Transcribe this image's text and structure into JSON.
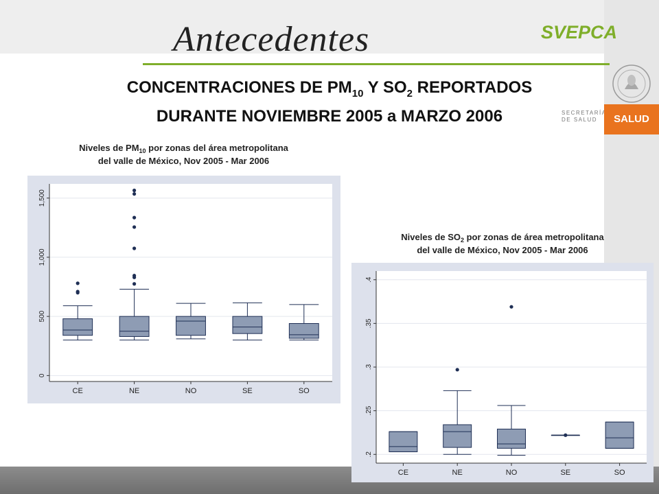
{
  "slide": {
    "title": "Antecedentes",
    "brand": "SVEPCA",
    "logo_text": "SALUD",
    "secretaria_line1": "SECRETARÍA",
    "secretaria_line2": "DE SALUD",
    "heading_line1_a": "CONCENTRACIONES DE PM",
    "heading_line1_sub": "10",
    "heading_line1_b": " Y SO",
    "heading_line1_sub2": "2",
    "heading_line1_c": " REPORTADOS",
    "heading_line2": "DURANTE NOVIEMBRE 2005 a MARZO 2006",
    "colors": {
      "accent": "#7fae2a",
      "logo_bg": "#e9731e",
      "box_fill": "#8e9cb4",
      "box_stroke": "#1f2f55",
      "chart_bg": "#dde1ec"
    }
  },
  "chart_data": [
    {
      "type": "box",
      "title_a": "Niveles de PM",
      "title_sub": "10",
      "title_b": " por zonas del área metropolitana",
      "title_line2": "del valle de México, Nov 2005 - Mar 2006",
      "categories": [
        "CE",
        "NE",
        "NO",
        "SE",
        "SO"
      ],
      "yticks": [
        0,
        500,
        1000,
        1500
      ],
      "ytick_labels": [
        "0",
        "500",
        "1,000",
        "1,500"
      ],
      "ylim": [
        -50,
        1620
      ],
      "boxes": [
        {
          "min": 300,
          "q1": 340,
          "median": 385,
          "q3": 480,
          "max": 590,
          "outliers": [
            700,
            710,
            780
          ]
        },
        {
          "min": 300,
          "q1": 330,
          "median": 375,
          "q3": 500,
          "max": 730,
          "outliers": [
            775,
            830,
            845,
            1075,
            1255,
            1335,
            1535,
            1565
          ]
        },
        {
          "min": 310,
          "q1": 340,
          "median": 460,
          "q3": 500,
          "max": 610,
          "outliers": []
        },
        {
          "min": 300,
          "q1": 355,
          "median": 410,
          "q3": 500,
          "max": 615,
          "outliers": []
        },
        {
          "min": 300,
          "q1": 315,
          "median": 345,
          "q3": 440,
          "max": 600,
          "outliers": []
        }
      ]
    },
    {
      "type": "box",
      "title_a": "Niveles de SO",
      "title_sub": "2",
      "title_b": " por zonas de área metropolitana",
      "title_line2": "del valle de México, Nov 2005 - Mar 2006",
      "categories": [
        "CE",
        "NE",
        "NO",
        "SE",
        "SO"
      ],
      "yticks": [
        0.2,
        0.25,
        0.3,
        0.35,
        0.4
      ],
      "ytick_labels": [
        ".2",
        ".25",
        ".3",
        ".35",
        ".4"
      ],
      "ylim": [
        0.19,
        0.41
      ],
      "boxes": [
        {
          "min": 0.203,
          "q1": 0.203,
          "median": 0.209,
          "q3": 0.226,
          "max": 0.226,
          "outliers": []
        },
        {
          "min": 0.2,
          "q1": 0.208,
          "median": 0.226,
          "q3": 0.234,
          "max": 0.273,
          "outliers": [
            0.297
          ]
        },
        {
          "min": 0.199,
          "q1": 0.207,
          "median": 0.212,
          "q3": 0.229,
          "max": 0.256,
          "outliers": [
            0.369
          ]
        },
        {
          "min": 0.222,
          "q1": 0.222,
          "median": 0.222,
          "q3": 0.222,
          "max": 0.222,
          "outliers": [
            0.222
          ]
        },
        {
          "min": 0.207,
          "q1": 0.207,
          "median": 0.219,
          "q3": 0.237,
          "max": 0.237,
          "outliers": []
        }
      ]
    }
  ]
}
